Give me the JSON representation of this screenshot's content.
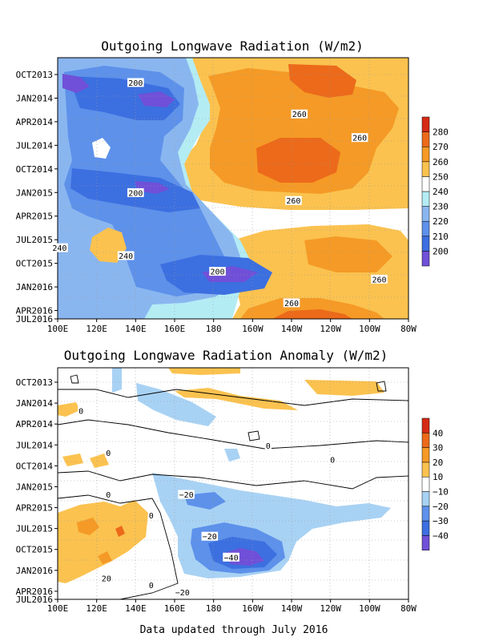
{
  "footer": "Data updated through July 2016",
  "chart_data": [
    {
      "type": "heatmap",
      "title": "Outgoing Longwave Radiation (W/m2)",
      "x_ticks": [
        "100E",
        "120E",
        "140E",
        "160E",
        "180",
        "160W",
        "140W",
        "120W",
        "100W",
        "80W"
      ],
      "y_ticks": [
        "OCT2013",
        "JAN2014",
        "APR2014",
        "JUL2014",
        "OCT2014",
        "JAN2015",
        "APR2015",
        "JUL2015",
        "OCT2015",
        "JAN2016",
        "APR2016",
        "JUL2016"
      ],
      "colorbar": {
        "levels": [
          200,
          210,
          220,
          230,
          240,
          250,
          260,
          270,
          280
        ],
        "labels": [
          "200",
          "210",
          "220",
          "230",
          "240",
          "250",
          "260",
          "270",
          "280"
        ],
        "colors": [
          "#7050d8",
          "#3c6fe0",
          "#5d91ea",
          "#8ab6f0",
          "#b4ecf4",
          "#ffffff",
          "#fbc24f",
          "#f59a26",
          "#ec6a1a",
          "#d52a16"
        ]
      },
      "contour_labels": [
        {
          "text": "200",
          "lon": 140,
          "month": 3
        },
        {
          "text": "200",
          "lon": 140,
          "month": 17
        },
        {
          "text": "200",
          "lon": 182,
          "month": 27
        },
        {
          "text": "240",
          "lon": 101,
          "month": 24
        },
        {
          "text": "240",
          "lon": 135,
          "month": 25
        },
        {
          "text": "260",
          "lon": 224,
          "month": 7
        },
        {
          "text": "260",
          "lon": 255,
          "month": 10
        },
        {
          "text": "260",
          "lon": 221,
          "month": 18
        },
        {
          "text": "260",
          "lon": 265,
          "month": 28
        },
        {
          "text": "260",
          "lon": 220,
          "month": 31
        }
      ]
    },
    {
      "type": "heatmap",
      "title": "Outgoing Longwave Radiation Anomaly (W/m2)",
      "x_ticks": [
        "100E",
        "120E",
        "140E",
        "160E",
        "180",
        "160W",
        "140W",
        "120W",
        "100W",
        "80W"
      ],
      "y_ticks": [
        "OCT2013",
        "JAN2014",
        "APR2014",
        "JUL2014",
        "OCT2014",
        "JAN2015",
        "APR2015",
        "JUL2015",
        "OCT2015",
        "JAN2016",
        "APR2016",
        "JUL2016"
      ],
      "colorbar": {
        "levels": [
          -40,
          -30,
          -20,
          -10,
          10,
          20,
          30,
          40
        ],
        "labels": [
          "−40",
          "−30",
          "−20",
          "−10",
          "10",
          "20",
          "30",
          "40"
        ],
        "colors": [
          "#7050d8",
          "#3c6fe0",
          "#5d91ea",
          "#a8d2f4",
          "#ffffff",
          "#fbc24f",
          "#f59a26",
          "#ec6a1a",
          "#d52a16"
        ]
      },
      "contour_labels": [
        {
          "text": "0",
          "lon": 112,
          "month": 6
        },
        {
          "text": "0",
          "lon": 126,
          "month": 12
        },
        {
          "text": "0",
          "lon": 241,
          "month": 13
        },
        {
          "text": "0",
          "lon": 208,
          "month": 11
        },
        {
          "text": "0",
          "lon": 126,
          "month": 18
        },
        {
          "text": "0",
          "lon": 148,
          "month": 21
        },
        {
          "text": "−20",
          "lon": 166,
          "month": 18
        },
        {
          "text": "−20",
          "lon": 178,
          "month": 24
        },
        {
          "text": "−40",
          "lon": 189,
          "month": 27
        },
        {
          "text": "−20",
          "lon": 164,
          "month": 32
        },
        {
          "text": "0",
          "lon": 148,
          "month": 31
        },
        {
          "text": "20",
          "lon": 125,
          "month": 30
        }
      ]
    }
  ]
}
